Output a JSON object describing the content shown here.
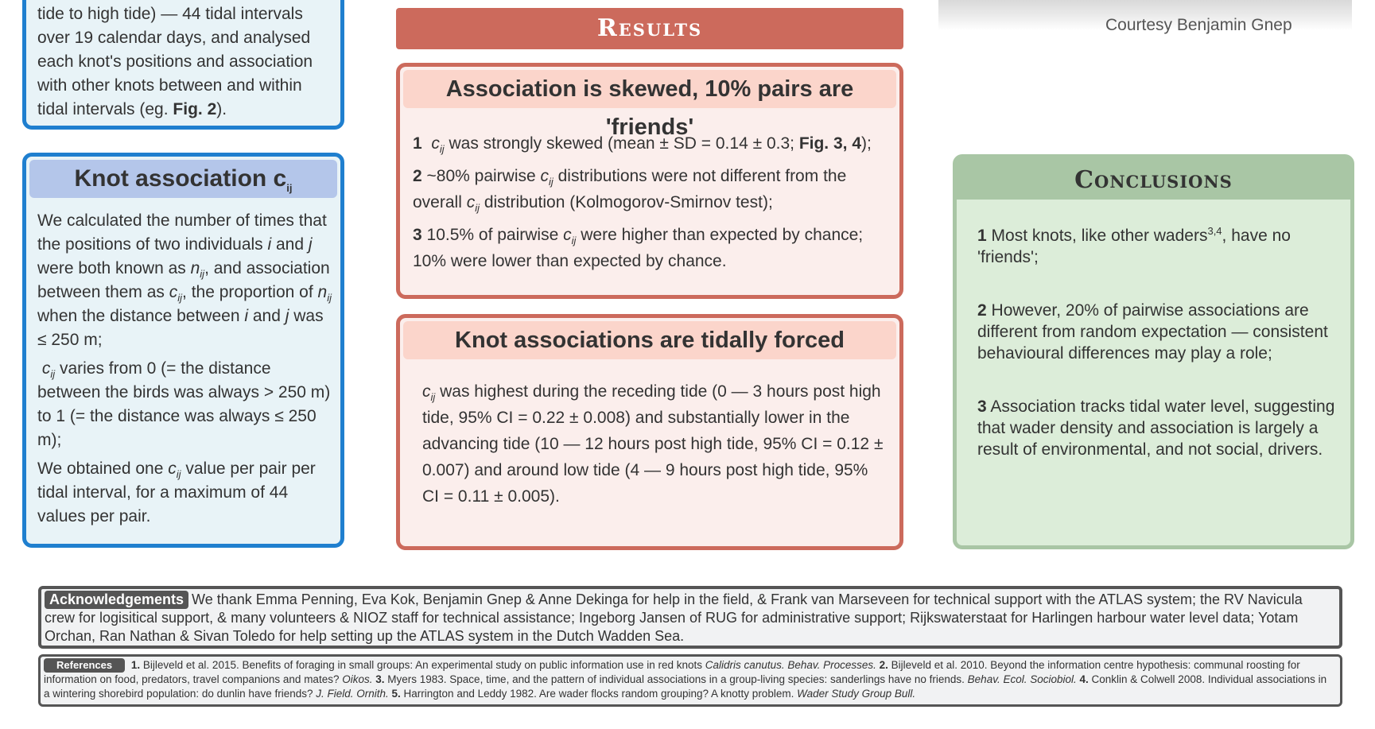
{
  "methods": {
    "line1": "tide to high tide) — 44 tidal intervals",
    "line2": "over 19 calendar days, and analysed",
    "line3": "each knot's positions and association",
    "line4": "with other knots between and within",
    "line5_pre": "tidal intervals (eg. ",
    "line5_bold": "Fig. 2",
    "line5_post": ")."
  },
  "knot_association": {
    "title": "Knot association c",
    "title_sub": "ij",
    "p1_a": "We calculated the number of times that the positions of two individuals ",
    "i": "i",
    "p1_b": " and ",
    "j": "j",
    "p1_c": " were both known as ",
    "n": "n",
    "ij": "ij",
    "p1_d": ", and association between them as ",
    "c": "c",
    "p1_e": ", the proportion of ",
    "p1_f": " when the distance between ",
    "p1_g": " and ",
    "p1_h": " was ≤ 250 m;",
    "p2_a": " varies from 0 (= the distance between the birds was always > 250 m) to 1 (= the distance was always ≤ 250 m);",
    "p3_a": "We obtained one ",
    "p3_b": " value per pair per tidal interval, for a maximum of 44 values per pair."
  },
  "results": {
    "banner": "Results",
    "box1": {
      "title": "Association is skewed, 10% pairs are 'friends'",
      "n1": "1",
      "t1_a": " was strongly skewed (mean ± SD = 0.14 ± 0.3; ",
      "t1_bold": "Fig. 3, 4",
      "t1_b": ");",
      "n2": "2",
      "t2_a": " ~80% pairwise ",
      "t2_b": " distributions were not different from the overall ",
      "t2_c": " distribution (Kolmogorov-Smirnov test);",
      "n3": "3",
      "t3_a": " 10.5% of pairwise ",
      "t3_b": " were higher than expected by chance; 10% were lower than expected by chance."
    },
    "box2": {
      "title": "Knot associations are tidally forced",
      "text": " was highest during the receding tide (0 — 3 hours post high tide, 95% CI = 0.22 ± 0.008) and substantially lower in the advancing tide (10 — 12 hours post high tide, 95% CI = 0.12 ± 0.007) and around low tide (4 — 9 hours post high tide, 95% CI = 0.11 ± 0.005)."
    }
  },
  "photo": {
    "courtesy": "Courtesy Benjamin Gnep"
  },
  "conclusions": {
    "title": "Conclusions",
    "n1": "1",
    "t1_a": " Most knots, like other waders",
    "t1_sup": "3,4",
    "t1_b": ", have no 'friends';",
    "n2": "2",
    "t2": " However, 20% of pairwise associations are different from random expectation — consistent behavioural differences may play a role;",
    "n3": "3",
    "t3": " Association tracks tidal water level, suggesting that wader density and association is largely a result of environmental, and not social, drivers."
  },
  "acknowledgements": {
    "label": "Acknowledgements",
    "text": "We thank Emma Penning, Eva Kok, Benjamin Gnep & Anne Dekinga for help in the field, & Frank van Marseveen for technical support with the ATLAS system; the RV Navicula crew for logisitical support, & many volunteers & NIOZ staff for technical assistance; Ingeborg Jansen of RUG for administrative support; Rijkswaterstaat for Harlingen harbour water level data; Yotam Orchan, Ran Nathan &  Sivan Toledo for help setting up the ATLAS system in the Dutch Wadden Sea."
  },
  "references": {
    "label": "References",
    "r1_n": "1.",
    "r1": " Bijleveld et al. 2015. Benefits of foraging in small groups: An experimental study on public information use in red knots ",
    "r1_i": "Calidris canutus. Behav. Processes.",
    "r2_n": " 2.",
    "r2": " Bijleveld et al. 2010. Beyond the information centre hypothesis: communal roosting for information on food, predators, travel companions and mates? ",
    "r2_i": "Oikos.",
    "r3_n": " 3.",
    "r3": " Myers 1983. Space, time, and the pattern of individual associations in a group-living species: sanderlings have no friends. ",
    "r3_i": "Behav. Ecol. Sociobiol.",
    "r4_n": " 4.",
    "r4": " Conklin & Colwell 2008. Individual associations in a wintering shorebird population: do dunlin have friends? ",
    "r4_i": "J. Field. Ornith.",
    "r5_n": " 5.",
    "r5": " Harrington and Leddy 1982. Are wader flocks random grouping? A knotty problem. ",
    "r5_i": "Wader Study Group Bull."
  }
}
